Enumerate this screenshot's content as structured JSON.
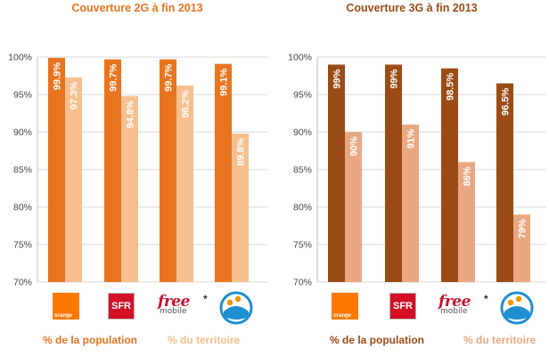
{
  "chart_data": [
    {
      "type": "bar",
      "title": "Couverture 2G à fin 2013",
      "categories": [
        "orange",
        "SFR",
        "Free mobile *",
        "Bouygues Telecom"
      ],
      "series": [
        {
          "name": "% de la population",
          "values": [
            99.9,
            99.7,
            99.7,
            99.1
          ],
          "labels": [
            "99.9%",
            "99.7%",
            "99.7%",
            "99.1%"
          ],
          "color": "#e8741f"
        },
        {
          "name": "% du territoire",
          "values": [
            97.3,
            94.8,
            96.2,
            89.8
          ],
          "labels": [
            "97.3%",
            "94.8%",
            "96.2%",
            "89.8%"
          ],
          "color": "#f7bf8e"
        }
      ],
      "yticks": [
        "70%",
        "75%",
        "80%",
        "85%",
        "90%",
        "95%",
        "100%"
      ],
      "ylim": [
        70,
        100
      ],
      "grid": true
    },
    {
      "type": "bar",
      "title": "Couverture 3G à fin 2013",
      "categories": [
        "orange",
        "SFR",
        "Free mobile *",
        "Bouygues Telecom"
      ],
      "series": [
        {
          "name": "% de la population",
          "values": [
            99,
            99,
            98.5,
            96.5
          ],
          "labels": [
            "99%",
            "99%",
            "98.5%",
            "96.5%"
          ],
          "color": "#9a4b16"
        },
        {
          "name": "% du territoire",
          "values": [
            90,
            91,
            86,
            79
          ],
          "labels": [
            "90%",
            "91%",
            "86%",
            "79%"
          ],
          "color": "#e9a882"
        }
      ],
      "yticks": [
        "70%",
        "75%",
        "80%",
        "85%",
        "90%",
        "95%",
        "100%"
      ],
      "ylim": [
        70,
        100
      ],
      "grid": true
    }
  ],
  "panels": [
    {
      "title": "Couverture 2G à fin 2013",
      "title_color": "#e8741f",
      "legend": [
        "% de la population",
        "% du territoire"
      ],
      "legend_colors": [
        "#e8741f",
        "#f7bf8e"
      ]
    },
    {
      "title": "Couverture 3G à fin 2013",
      "title_color": "#9a4b16",
      "legend": [
        "% de la population",
        "% du territoire"
      ],
      "legend_colors": [
        "#9a4b16",
        "#e9a882"
      ]
    }
  ],
  "logos": {
    "orange": "orange",
    "sfr": "SFR",
    "free_word": "free",
    "free_sub": "mobile",
    "asterisk": "*",
    "bouygues_icon": "bouygues-telecom-logo-icon"
  }
}
